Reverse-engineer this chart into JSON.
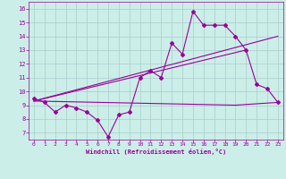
{
  "xlabel": "Windchill (Refroidissement éolien,°C)",
  "bg_color": "#cceee8",
  "grid_color": "#aacccc",
  "line_color": "#990099",
  "x_ticks": [
    0,
    1,
    2,
    3,
    4,
    5,
    6,
    7,
    8,
    9,
    10,
    11,
    12,
    13,
    14,
    15,
    16,
    17,
    18,
    19,
    20,
    21,
    22,
    23
  ],
  "y_ticks": [
    7,
    8,
    9,
    10,
    11,
    12,
    13,
    14,
    15,
    16
  ],
  "xlim": [
    -0.5,
    23.5
  ],
  "ylim": [
    6.5,
    16.5
  ],
  "main_series": {
    "x": [
      0,
      1,
      2,
      3,
      4,
      5,
      6,
      7,
      8,
      9,
      10,
      11,
      12,
      13,
      14,
      15,
      16,
      17,
      18,
      19,
      20,
      21,
      22,
      23
    ],
    "y": [
      9.5,
      9.2,
      8.5,
      9.0,
      8.8,
      8.5,
      7.9,
      6.7,
      8.3,
      8.5,
      11.0,
      11.5,
      11.0,
      13.5,
      12.7,
      15.8,
      14.8,
      14.8,
      14.8,
      14.0,
      13.0,
      10.5,
      10.2,
      9.2
    ]
  },
  "line_flat": {
    "x": [
      0,
      19,
      23
    ],
    "y": [
      9.3,
      9.0,
      9.2
    ]
  },
  "line_diag1": {
    "x": [
      0,
      20
    ],
    "y": [
      9.3,
      13.0
    ]
  },
  "line_diag2": {
    "x": [
      0,
      23
    ],
    "y": [
      9.3,
      14.0
    ]
  }
}
